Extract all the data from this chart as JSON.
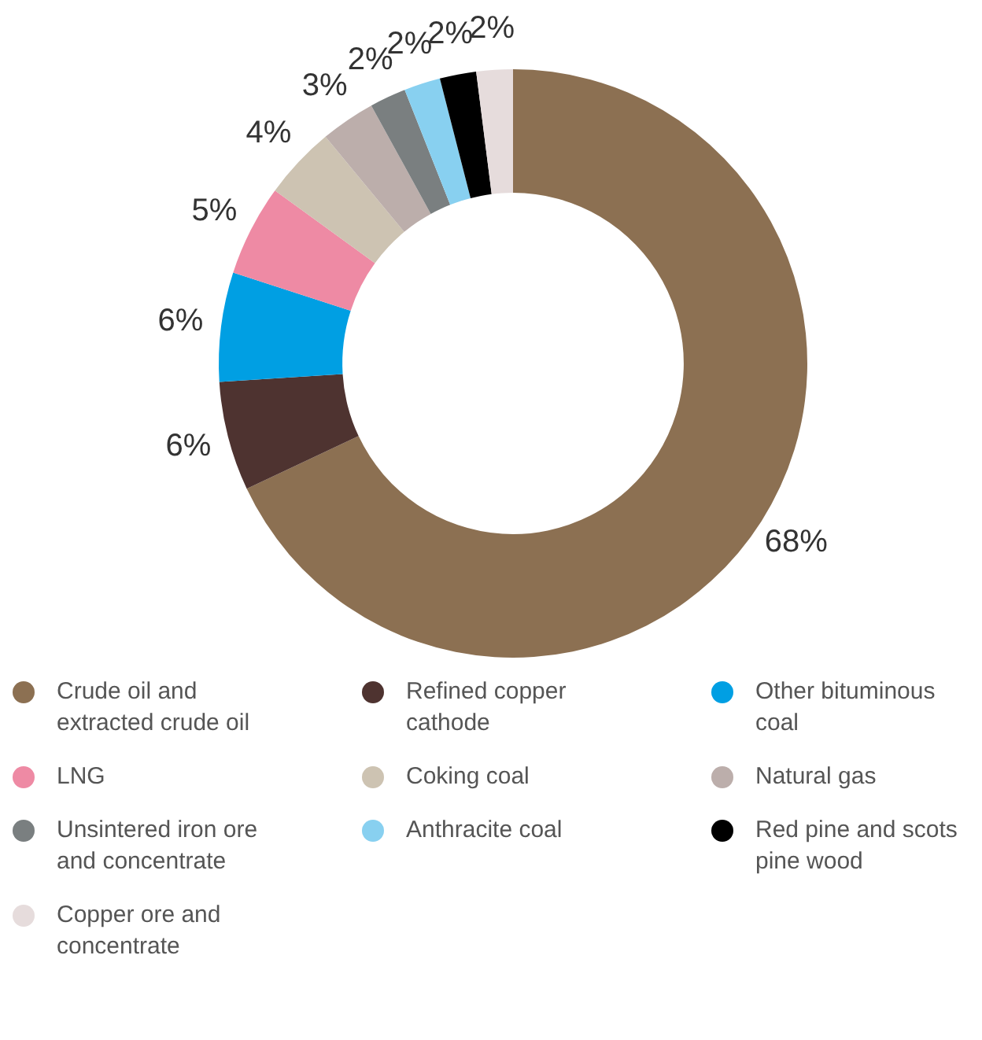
{
  "chart_data": {
    "type": "donut",
    "categories": [
      "Crude oil and extracted crude oil",
      "Refined copper cathode",
      "Other bituminous coal",
      "LNG",
      "Coking coal",
      "Natural gas",
      "Unsintered iron ore and concentrate",
      "Anthracite coal",
      "Red pine and scots pine wood",
      "Copper ore and concentrate"
    ],
    "values": [
      68,
      6,
      6,
      5,
      4,
      3,
      2,
      2,
      2,
      2
    ],
    "colors": [
      "#8c7052",
      "#4e3330",
      "#009fe3",
      "#ee8aa4",
      "#cdc3b2",
      "#bcaeab",
      "#7a7f80",
      "#88d0f0",
      "#000000",
      "#e6dcdc"
    ],
    "value_labels": [
      "68%",
      "6%",
      "6%",
      "5%",
      "4%",
      "3%",
      "2%",
      "2%",
      "2%",
      "2%"
    ],
    "legend": "bottom"
  }
}
